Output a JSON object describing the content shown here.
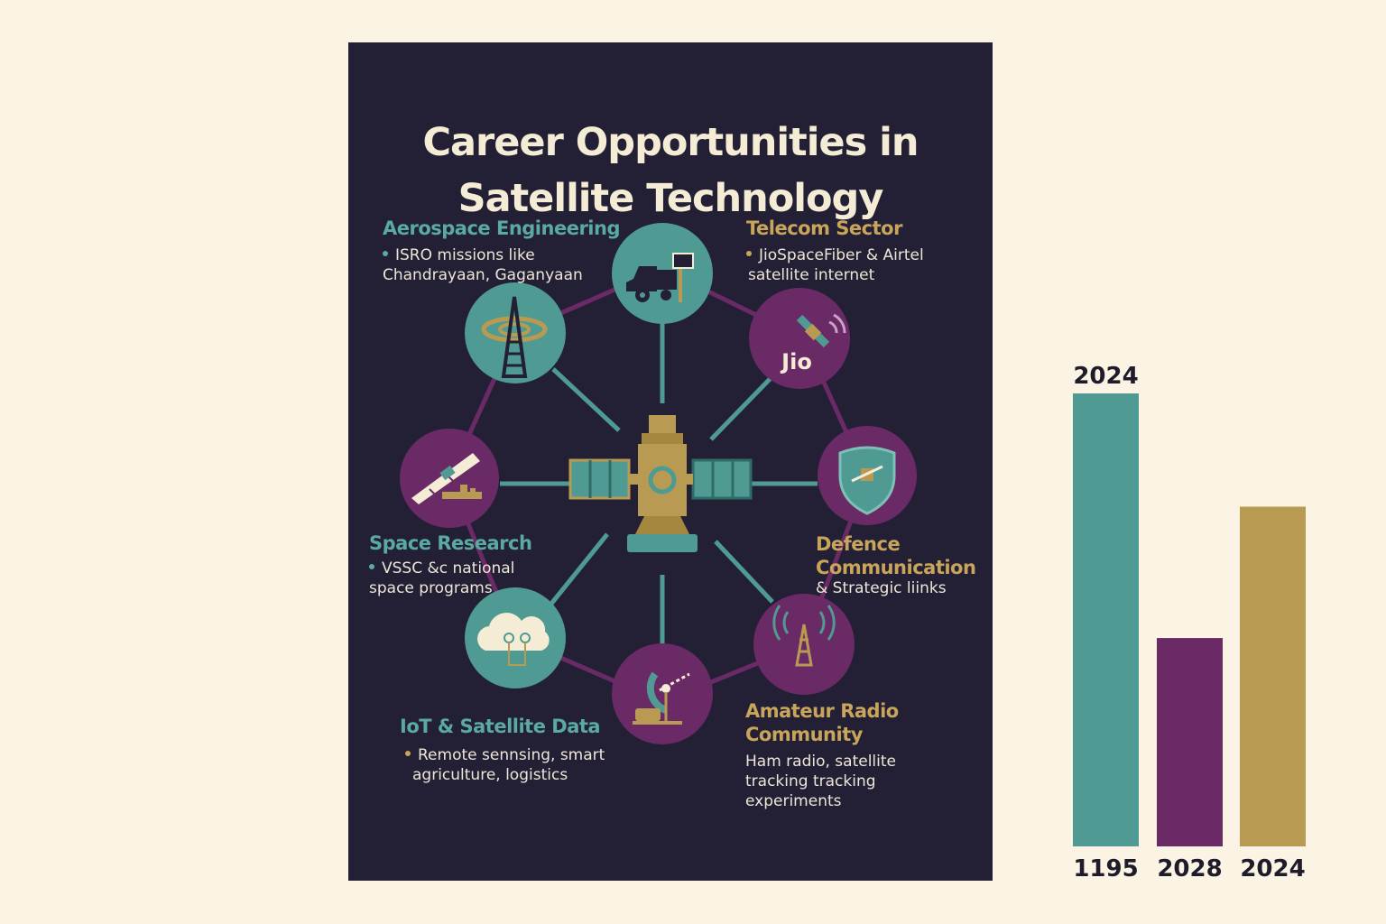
{
  "poster": {
    "title_line1": "Career Opportunities in",
    "title_line2": "Satellite Technology",
    "colors": {
      "background": "#232036",
      "teal": "#4f9a92",
      "purple": "#6a2a66",
      "gold": "#b99a52",
      "line_purple": "#6a2a66"
    },
    "sections": {
      "aerospace": {
        "title": "Aerospace Engineering",
        "line1": "ISRO missions like",
        "line2": "Chandrayaan, Gaganyaan"
      },
      "telecom": {
        "title": "Telecom Sector",
        "line1": "JioSpaceFiber & Airtel",
        "line2": "satellite internet"
      },
      "space_research": {
        "title": "Space Research",
        "line1": "VSSC &c national",
        "line2": "space programs"
      },
      "defence": {
        "title_line1": "Defence",
        "title_line2": "Communication",
        "line1": "& Strategic liinks"
      },
      "iot": {
        "title": "IoT & Satellite Data",
        "line1": "Remote sennsing, smart",
        "line2": "agriculture,  logistics"
      },
      "amateur": {
        "title_line1": "Amateur Radio",
        "title_line2": "Community",
        "line1": "Ham radio, satellite",
        "line2": "tracking tracking",
        "line3": "experiments"
      }
    },
    "icons": {
      "jio_label": "Jio",
      "node_icons": [
        "truck-antenna-icon",
        "satellite-jio-icon",
        "shield-satellite-icon",
        "radio-tower-icon",
        "satellite-dish-icon",
        "cloud-iot-icon",
        "solar-panel-satellite-icon",
        "radio-tower-ring-icon"
      ],
      "center_icon": "satellite-icon"
    }
  },
  "chart_data": {
    "type": "bar",
    "categories": [
      "1195",
      "2028",
      "2024"
    ],
    "top_label": "2024",
    "values": [
      100,
      46,
      75
    ],
    "colors": [
      "#4f9a92",
      "#6a2a66",
      "#b99a52"
    ],
    "ylim": [
      0,
      100
    ]
  }
}
